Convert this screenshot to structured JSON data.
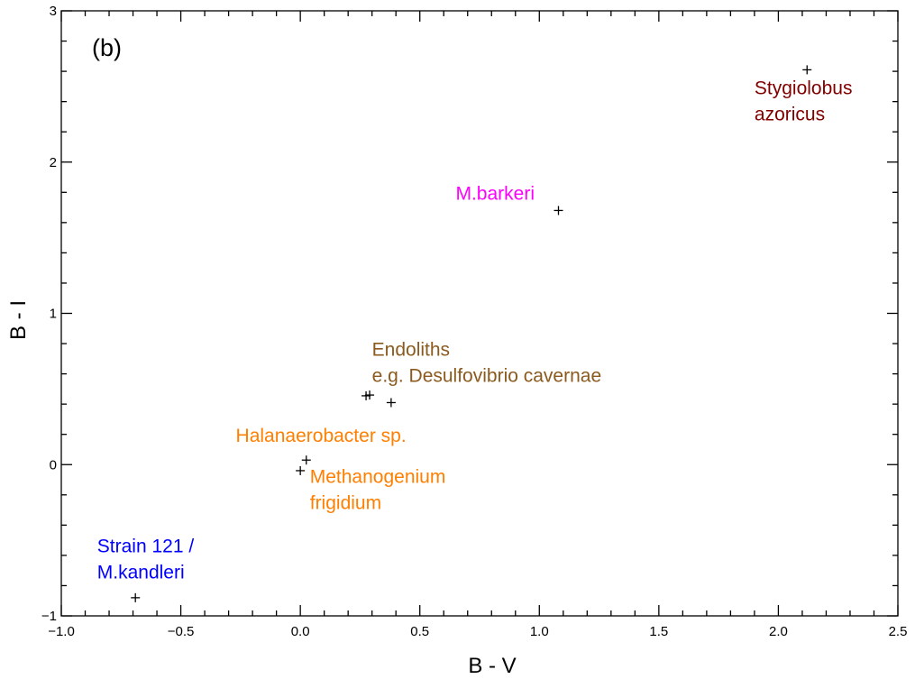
{
  "chart_data": {
    "type": "scatter",
    "panel_label": "(b)",
    "xlabel": "B - V",
    "ylabel": "B - I",
    "xlim": [
      -1.0,
      2.5
    ],
    "ylim": [
      -1,
      3
    ],
    "x_ticks": [
      -1.0,
      -0.5,
      0.0,
      0.5,
      1.0,
      1.5,
      2.0,
      2.5
    ],
    "x_tick_labels": [
      "−1.0",
      "−0.5",
      "0.0",
      "0.5",
      "1.0",
      "1.5",
      "2.0",
      "2.5"
    ],
    "y_ticks": [
      -1,
      0,
      1,
      2,
      3
    ],
    "y_tick_labels": [
      "−1",
      "0",
      "1",
      "2",
      "3"
    ],
    "grid": false,
    "points": [
      {
        "x": 2.12,
        "y": 2.61
      },
      {
        "x": 1.08,
        "y": 1.68
      },
      {
        "x": 0.275,
        "y": 0.455
      },
      {
        "x": 0.29,
        "y": 0.46
      },
      {
        "x": 0.38,
        "y": 0.41
      },
      {
        "x": 0.025,
        "y": 0.03
      },
      {
        "x": 0.0,
        "y": -0.04
      },
      {
        "x": -0.69,
        "y": -0.88
      }
    ],
    "annotations": [
      {
        "lines": [
          "Stygiolobus",
          "azoricus"
        ],
        "color": "#800000",
        "x": 1.9,
        "y": 2.45,
        "anchor": "start"
      },
      {
        "lines": [
          "M.barkeri"
        ],
        "color": "#ff00ff",
        "x": 0.65,
        "y": 1.75,
        "anchor": "start"
      },
      {
        "lines": [
          "Endoliths",
          "e.g. Desulfovibrio cavernae"
        ],
        "color": "#8b5a1e",
        "x": 0.3,
        "y": 0.72,
        "anchor": "start"
      },
      {
        "lines": [
          "Halanaerobacter sp."
        ],
        "color": "#ff7f00",
        "x": -0.27,
        "y": 0.15,
        "anchor": "start"
      },
      {
        "lines": [
          "Methanogenium",
          "frigidium"
        ],
        "color": "#ff7f00",
        "x": 0.04,
        "y": -0.12,
        "anchor": "start"
      },
      {
        "lines": [
          "Strain 121 /",
          "M.kandleri"
        ],
        "color": "#0000ff",
        "x": -0.85,
        "y": -0.58,
        "anchor": "start"
      }
    ]
  }
}
